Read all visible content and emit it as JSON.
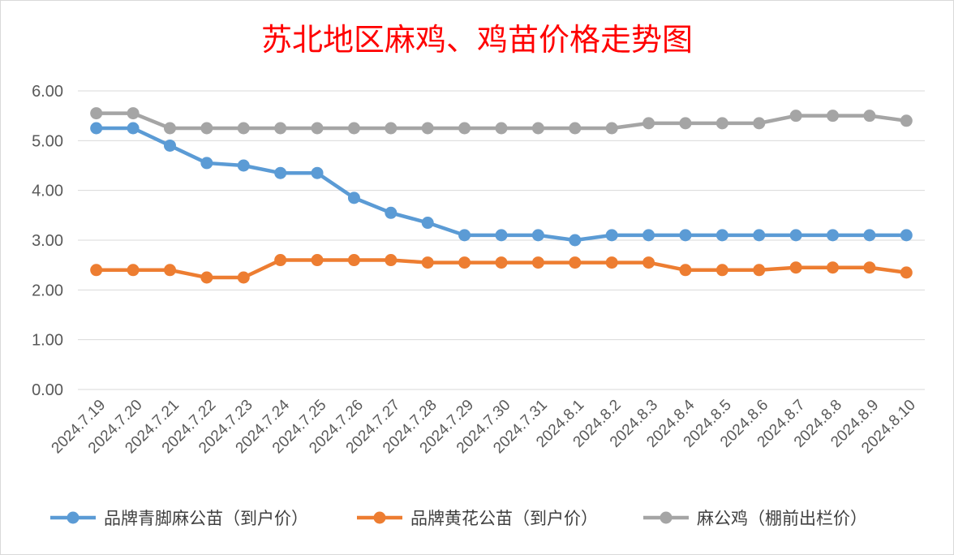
{
  "chart_data": {
    "type": "line",
    "title": "苏北地区麻鸡、鸡苗价格走势图",
    "categories": [
      "2024.7.19",
      "2024.7.20",
      "2024.7.21",
      "2024.7.22",
      "2024.7.23",
      "2024.7.24",
      "2024.7.25",
      "2024.7.26",
      "2024.7.27",
      "2024.7.28",
      "2024.7.29",
      "2024.7.30",
      "2024.7.31",
      "2024.8.1",
      "2024.8.2",
      "2024.8.3",
      "2024.8.4",
      "2024.8.5",
      "2024.8.6",
      "2024.8.7",
      "2024.8.8",
      "2024.8.9",
      "2024.8.10"
    ],
    "series": [
      {
        "name": "品牌青脚麻公苗（到户价）",
        "color": "#5b9bd5",
        "values": [
          5.25,
          5.25,
          4.9,
          4.55,
          4.5,
          4.35,
          4.35,
          3.85,
          3.55,
          3.35,
          3.1,
          3.1,
          3.1,
          3.0,
          3.1,
          3.1,
          3.1,
          3.1,
          3.1,
          3.1,
          3.1,
          3.1,
          3.1
        ]
      },
      {
        "name": "品牌黄花公苗（到户价）",
        "color": "#ed7d31",
        "values": [
          2.4,
          2.4,
          2.4,
          2.25,
          2.25,
          2.6,
          2.6,
          2.6,
          2.6,
          2.55,
          2.55,
          2.55,
          2.55,
          2.55,
          2.55,
          2.55,
          2.4,
          2.4,
          2.4,
          2.45,
          2.45,
          2.45,
          2.35
        ]
      },
      {
        "name": "麻公鸡（棚前出栏价）",
        "color": "#a5a5a5",
        "values": [
          5.55,
          5.55,
          5.25,
          5.25,
          5.25,
          5.25,
          5.25,
          5.25,
          5.25,
          5.25,
          5.25,
          5.25,
          5.25,
          5.25,
          5.25,
          5.35,
          5.35,
          5.35,
          5.35,
          5.5,
          5.5,
          5.5,
          5.4
        ]
      }
    ],
    "yticks": [
      "0.00",
      "1.00",
      "2.00",
      "3.00",
      "4.00",
      "5.00",
      "6.00"
    ],
    "ylim": [
      0,
      6
    ],
    "grid": true,
    "legend_position": "bottom"
  }
}
